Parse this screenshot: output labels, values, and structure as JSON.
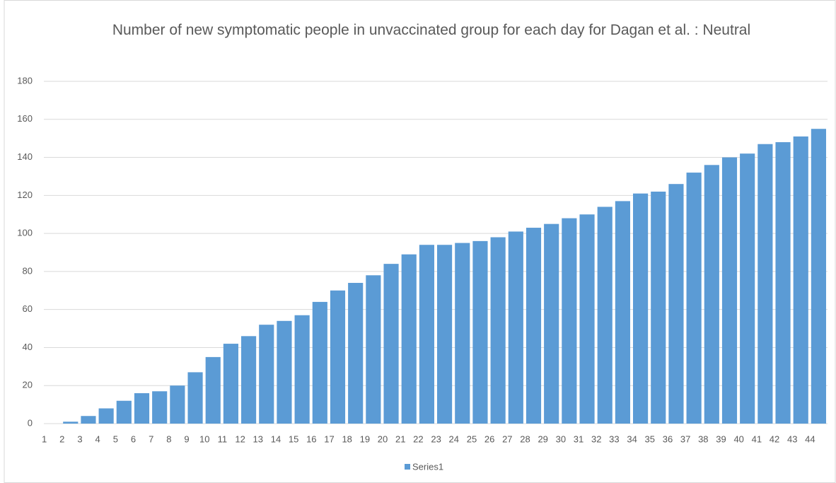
{
  "chart_data": {
    "type": "bar",
    "title": "Number of new symptomatic people in unvaccinated group for each day for Dagan et al. : Neutral",
    "categories": [
      "1",
      "2",
      "3",
      "4",
      "5",
      "6",
      "7",
      "8",
      "9",
      "10",
      "11",
      "12",
      "13",
      "14",
      "15",
      "16",
      "17",
      "18",
      "19",
      "20",
      "21",
      "22",
      "23",
      "24",
      "25",
      "26",
      "27",
      "28",
      "29",
      "30",
      "31",
      "32",
      "33",
      "34",
      "35",
      "36",
      "37",
      "38",
      "39",
      "40",
      "41",
      "42",
      "43",
      "44"
    ],
    "series": [
      {
        "name": "Series1",
        "color": "#5b9bd5",
        "values": [
          0,
          1,
          4,
          8,
          12,
          16,
          17,
          20,
          27,
          35,
          42,
          46,
          52,
          54,
          57,
          64,
          70,
          74,
          78,
          84,
          89,
          94,
          94,
          95,
          96,
          98,
          101,
          103,
          105,
          108,
          110,
          114,
          117,
          121,
          122,
          126,
          132,
          136,
          140,
          142,
          147,
          148,
          151,
          155
        ]
      }
    ],
    "ylim": [
      0,
      180
    ],
    "yticks": [
      0,
      20,
      40,
      60,
      80,
      100,
      120,
      140,
      160,
      180
    ],
    "grid": true,
    "legend": "bottom"
  }
}
